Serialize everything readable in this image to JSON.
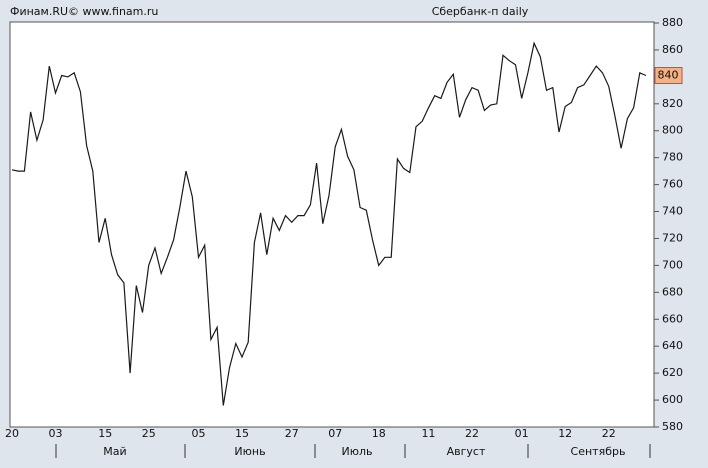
{
  "chart_data": {
    "type": "line",
    "source": "Финам.RU©  www.finam.ru",
    "title": "Сбербанк-п daily",
    "last_label": "840",
    "months": [
      "Май",
      "Июнь",
      "Июль",
      "Август",
      "Сентябрь"
    ],
    "categories": [
      "20",
      null,
      null,
      null,
      null,
      null,
      null,
      "03",
      null,
      null,
      null,
      null,
      null,
      null,
      null,
      "15",
      null,
      null,
      null,
      null,
      null,
      null,
      "25",
      null,
      null,
      null,
      null,
      null,
      null,
      null,
      "05",
      null,
      null,
      null,
      null,
      null,
      null,
      "15",
      null,
      null,
      null,
      null,
      null,
      null,
      null,
      "27",
      null,
      null,
      null,
      null,
      null,
      null,
      "07",
      null,
      null,
      null,
      null,
      null,
      null,
      "18",
      null,
      null,
      null,
      null,
      null,
      null,
      null,
      "11",
      null,
      null,
      null,
      null,
      null,
      null,
      "22",
      null,
      null,
      null,
      null,
      null,
      null,
      null,
      "01",
      null,
      null,
      null,
      null,
      null,
      null,
      "12",
      null,
      null,
      null,
      null,
      null,
      null,
      "22",
      null,
      null,
      null,
      null,
      null,
      null
    ],
    "series": [
      {
        "color": "#1a1a1a",
        "values": [
          771,
          770,
          770,
          814,
          793,
          808,
          848,
          828,
          841,
          840,
          843,
          829,
          789,
          770,
          717,
          735,
          708,
          693,
          687,
          620,
          685,
          665,
          700,
          713,
          694,
          706,
          719,
          743,
          770,
          751,
          706,
          715,
          645,
          654,
          596,
          624,
          642,
          632,
          643,
          717,
          739,
          708,
          735,
          726,
          737,
          732,
          737,
          737,
          745,
          776,
          731,
          752,
          788,
          801,
          781,
          771,
          743,
          741,
          719,
          700,
          706,
          706,
          779,
          772,
          769,
          803,
          807,
          817,
          826,
          824,
          836,
          842,
          810,
          823,
          832,
          830,
          815,
          819,
          820,
          856,
          852,
          849,
          824,
          843,
          865,
          855,
          830,
          832,
          799,
          818,
          821,
          832,
          834,
          841,
          848,
          843,
          833,
          811,
          787,
          809,
          817,
          843,
          841
        ]
      }
    ],
    "ylim": [
      580,
      880
    ],
    "yticks": [
      580,
      600,
      620,
      640,
      660,
      680,
      700,
      720,
      740,
      760,
      780,
      800,
      820,
      840,
      860,
      880
    ]
  }
}
